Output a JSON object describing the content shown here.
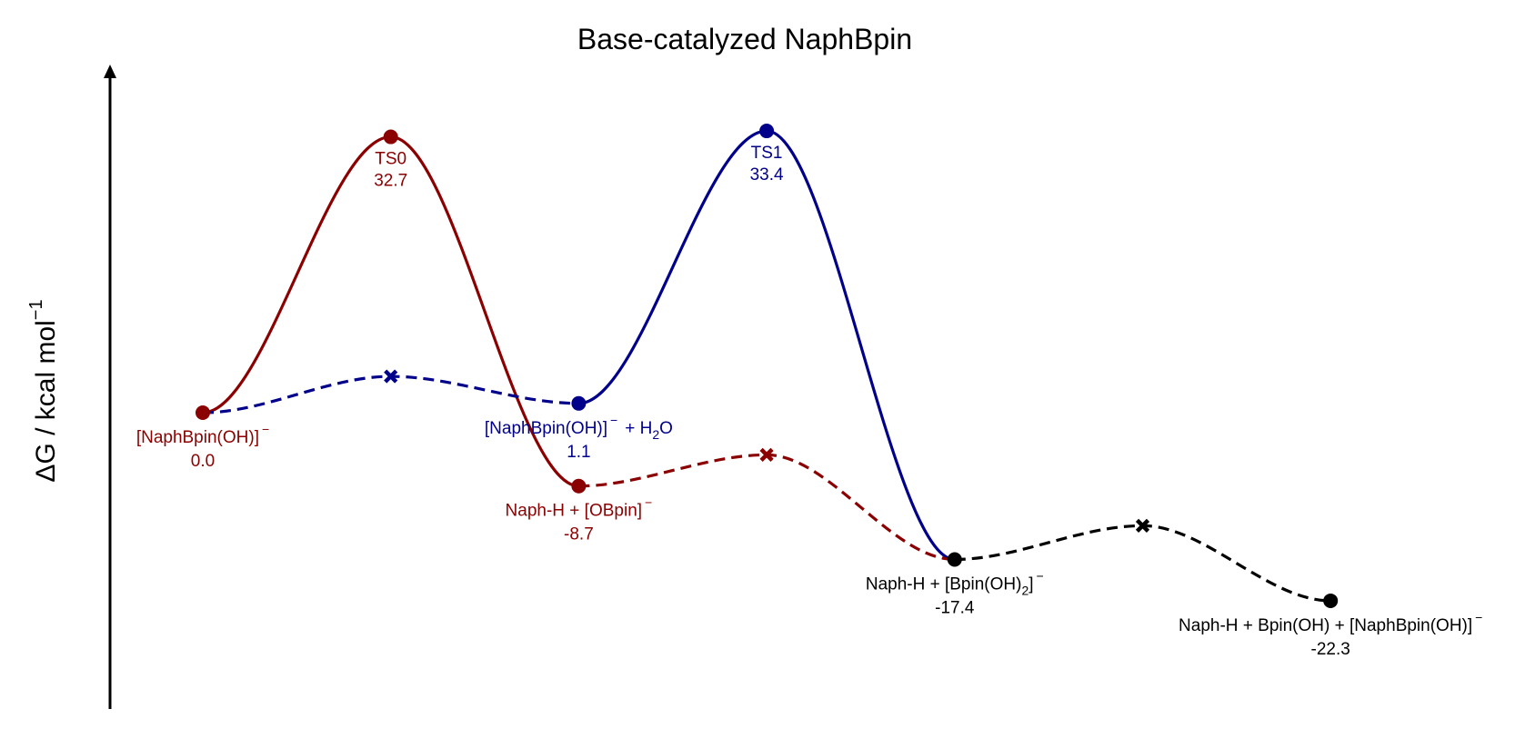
{
  "chart_data": {
    "type": "line",
    "title": "Base-catalyzed NaphBpin",
    "ylabel": "ΔG / kcal mol",
    "ylabel_superscript": "−1",
    "ylim": [
      -25,
      36
    ],
    "grid": false,
    "x_ticks_shown": false,
    "y_ticks_shown": false,
    "colors": {
      "red": "#8b0000",
      "blue": "#00008b",
      "black": "#000000"
    },
    "points": [
      {
        "id": "p0",
        "x": 0.0,
        "y": 0.0,
        "name": "[NaphBpin(OH)]",
        "sup": "−",
        "value": "0.0",
        "color": "red",
        "label_pos": "below"
      },
      {
        "id": "ts0",
        "x": 1.0,
        "y": 32.7,
        "name": "TS0",
        "value": "32.7",
        "color": "red",
        "label_pos": "below"
      },
      {
        "id": "p1",
        "x": 2.0,
        "y": 1.1,
        "name": "[NaphBpin(OH)]",
        "sup": "−",
        "name_suffix": "+ H",
        "sub": "2",
        "name_suffix2": "O",
        "value": "1.1",
        "color": "blue",
        "label_pos": "below"
      },
      {
        "id": "p2",
        "x": 2.0,
        "y": -8.7,
        "name": "Naph-H + [OBpin]",
        "sup": "−",
        "value": "-8.7",
        "color": "red",
        "label_pos": "below"
      },
      {
        "id": "ts1",
        "x": 3.0,
        "y": 33.4,
        "name": "TS1",
        "value": "33.4",
        "color": "blue",
        "label_pos": "below"
      },
      {
        "id": "p3",
        "x": 4.0,
        "y": -17.4,
        "name": "Naph-H + [Bpin(OH)",
        "sub": "2",
        "name_suffix": "]",
        "sup": "−",
        "value": "-17.4",
        "color": "black",
        "label_pos": "below"
      },
      {
        "id": "p4",
        "x": 6.0,
        "y": -22.3,
        "name": "Naph-H + Bpin(OH) + [NaphBpin(OH)]",
        "sup": "−",
        "value": "-22.3",
        "color": "black",
        "label_pos": "below"
      }
    ],
    "crosses": [
      {
        "id": "x1",
        "x": 1.0,
        "y": 4.3,
        "color": "blue"
      },
      {
        "id": "x2",
        "x": 3.0,
        "y": -5.0,
        "color": "red"
      },
      {
        "id": "x3",
        "x": 5.0,
        "y": -13.4,
        "color": "black"
      }
    ],
    "series": [
      {
        "path": [
          [
            0.0,
            0.0
          ],
          [
            1.0,
            32.7
          ],
          [
            2.0,
            -8.7
          ]
        ],
        "color": "red",
        "style": "solid"
      },
      {
        "path": [
          [
            0.0,
            0.0
          ],
          [
            1.0,
            4.3
          ],
          [
            2.0,
            1.1
          ]
        ],
        "color": "blue",
        "style": "dashed"
      },
      {
        "path": [
          [
            2.0,
            1.1
          ],
          [
            3.0,
            33.4
          ],
          [
            4.0,
            -17.4
          ]
        ],
        "color": "blue",
        "style": "solid"
      },
      {
        "path": [
          [
            2.0,
            -8.7
          ],
          [
            3.0,
            -5.0
          ],
          [
            4.0,
            -17.4
          ]
        ],
        "color": "red",
        "style": "dashed"
      },
      {
        "path": [
          [
            4.0,
            -17.4
          ],
          [
            5.0,
            -13.4
          ],
          [
            6.0,
            -22.3
          ]
        ],
        "color": "black",
        "style": "dashed"
      }
    ]
  }
}
